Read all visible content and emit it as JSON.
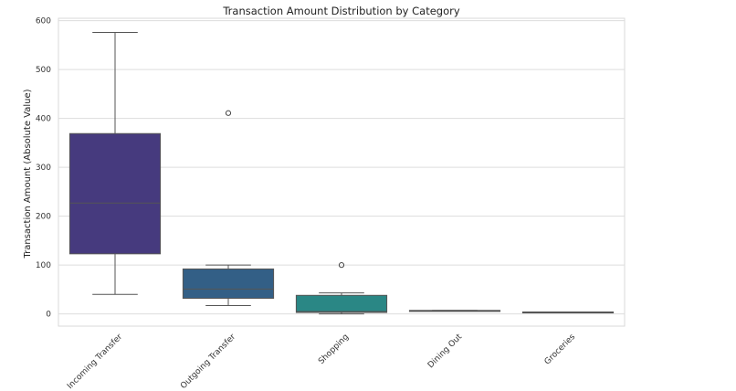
{
  "chart_data": {
    "type": "box",
    "title": "Transaction Amount Distribution by Category",
    "xlabel": "",
    "ylabel": "Transaction Amount (Absolute Value)",
    "ylim": [
      -25,
      605
    ],
    "yticks": [
      0,
      100,
      200,
      300,
      400,
      500,
      600
    ],
    "grid": "horizontal",
    "categories": [
      "Incoming Transfer",
      "Outgoing Transfer",
      "Shopping",
      "Dining Out",
      "Groceries"
    ],
    "colors": [
      "#463a7e",
      "#335f86",
      "#2a8785",
      "#35a37c",
      "#5ec261"
    ],
    "boxes": [
      {
        "category": "Incoming Transfer",
        "min": 40,
        "q1": 123,
        "median": 227,
        "q3": 369,
        "max": 576,
        "outliers": []
      },
      {
        "category": "Outgoing Transfer",
        "min": 17,
        "q1": 32,
        "median": 51,
        "q3": 92,
        "max": 100,
        "outliers": [
          411
        ]
      },
      {
        "category": "Shopping",
        "min": 0,
        "q1": 3,
        "median": 5,
        "q3": 38,
        "max": 43,
        "outliers": [
          100
        ]
      },
      {
        "category": "Dining Out",
        "min": 7,
        "q1": 7,
        "median": 7,
        "q3": 7,
        "max": 7,
        "outliers": []
      },
      {
        "category": "Groceries",
        "min": 4,
        "q1": 4,
        "median": 4,
        "q3": 4,
        "max": 4,
        "outliers": []
      }
    ]
  }
}
